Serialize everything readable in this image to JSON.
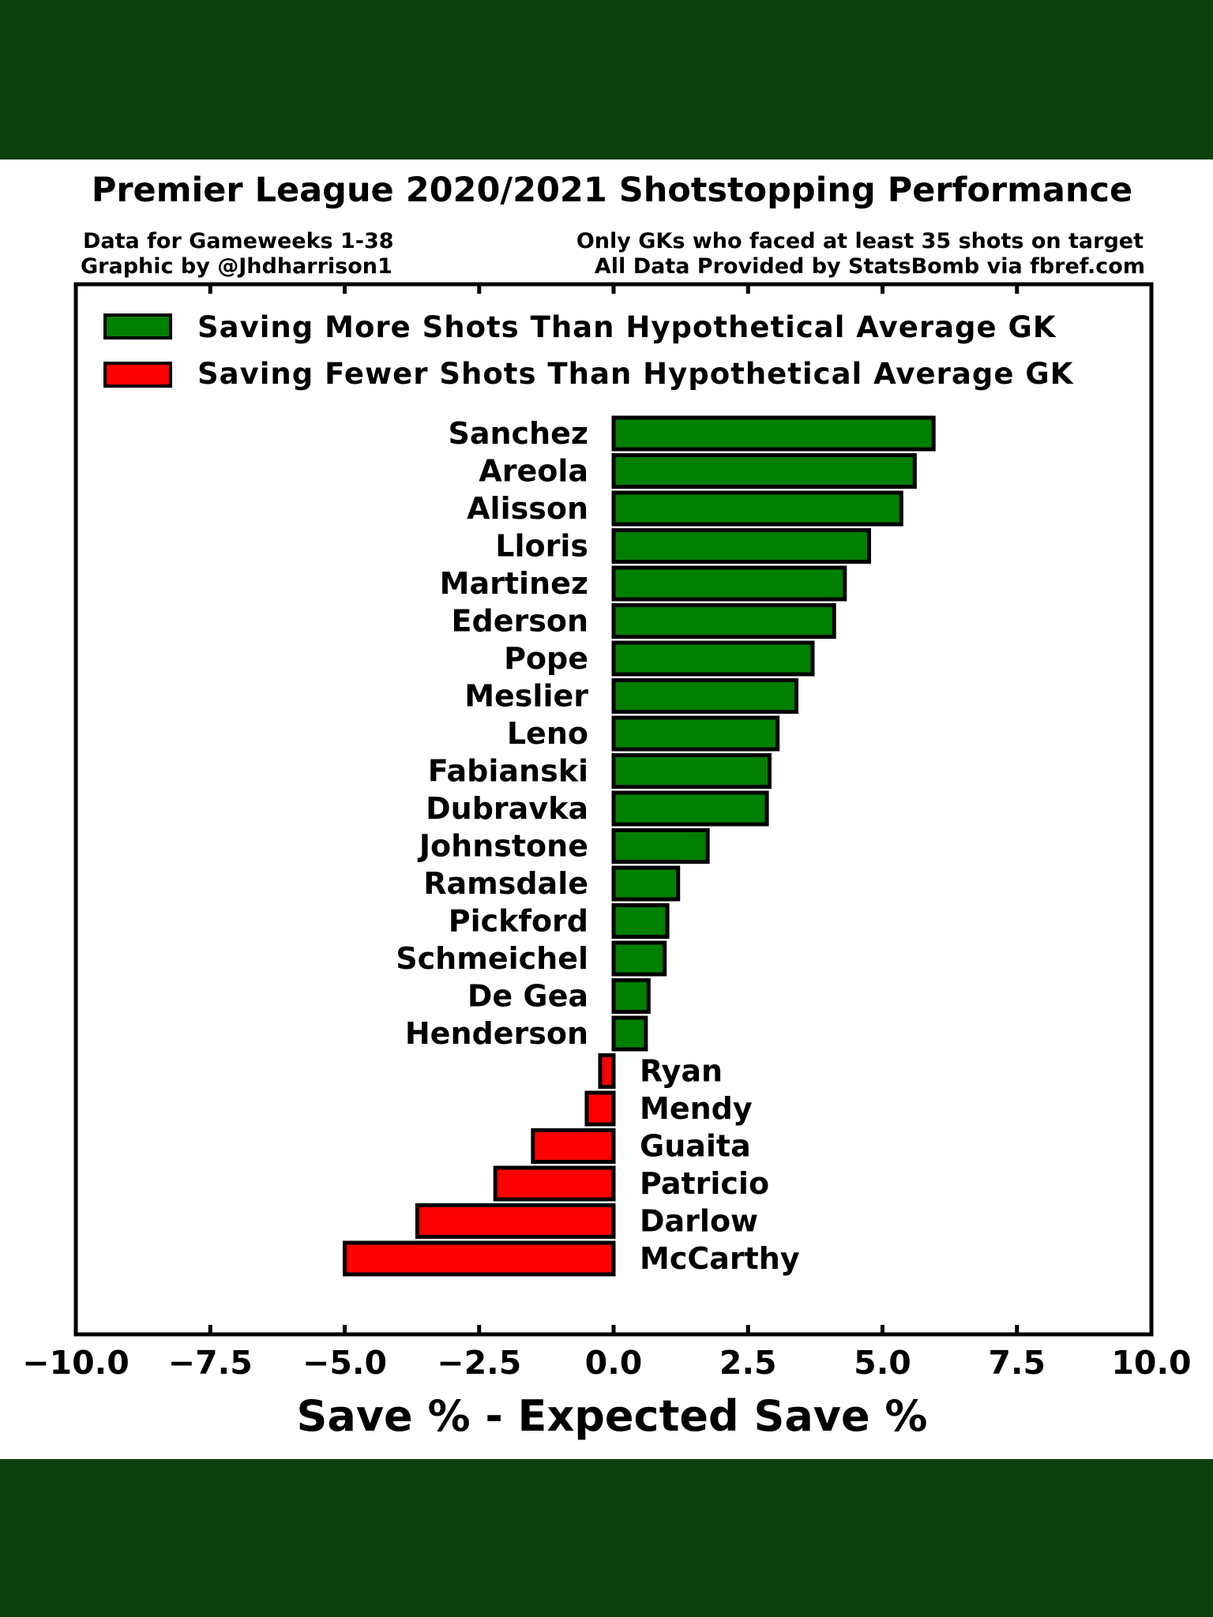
{
  "colors": {
    "band": "#0c3f0c",
    "positive": "#008000",
    "negative": "#ff0000",
    "ink": "#000000"
  },
  "chart_data": {
    "type": "bar",
    "orientation": "horizontal",
    "title": "Premier League 2020/2021 Shotstopping Performance",
    "subtitle_left": [
      "Data for Gameweeks 1-38",
      "Graphic by @Jhdharrison1"
    ],
    "subtitle_right": [
      "Only GKs who faced at least 35 shots on target",
      "All Data Provided by StatsBomb via fbref.com"
    ],
    "xlabel": "Save % - Expected Save %",
    "ylabel": "",
    "xlim": [
      -10,
      10
    ],
    "xticks": [
      -10,
      -7.5,
      -5,
      -2.5,
      0,
      2.5,
      5,
      7.5,
      10
    ],
    "xtick_labels": [
      "−10.0",
      "−7.5",
      "−5.0",
      "−2.5",
      "0.0",
      "2.5",
      "5.0",
      "7.5",
      "10.0"
    ],
    "grid": false,
    "legend_position": "top-left",
    "legend": [
      {
        "label": "Saving More Shots Than Hypothetical Average GK",
        "color": "#008000"
      },
      {
        "label": "Saving Fewer Shots Than Hypothetical Average GK",
        "color": "#ff0000"
      }
    ],
    "categories": [
      "Sanchez",
      "Areola",
      "Alisson",
      "Lloris",
      "Martinez",
      "Ederson",
      "Pope",
      "Meslier",
      "Leno",
      "Fabianski",
      "Dubravka",
      "Johnstone",
      "Ramsdale",
      "Pickford",
      "Schmeichel",
      "De Gea",
      "Henderson",
      "Ryan",
      "Mendy",
      "Guaita",
      "Patricio",
      "Darlow",
      "McCarthy"
    ],
    "values": [
      5.95,
      5.6,
      5.35,
      4.75,
      4.3,
      4.1,
      3.7,
      3.4,
      3.05,
      2.9,
      2.85,
      1.75,
      1.2,
      1.0,
      0.95,
      0.65,
      0.6,
      -0.25,
      -0.5,
      -1.5,
      -2.2,
      -3.65,
      -5.0
    ]
  }
}
